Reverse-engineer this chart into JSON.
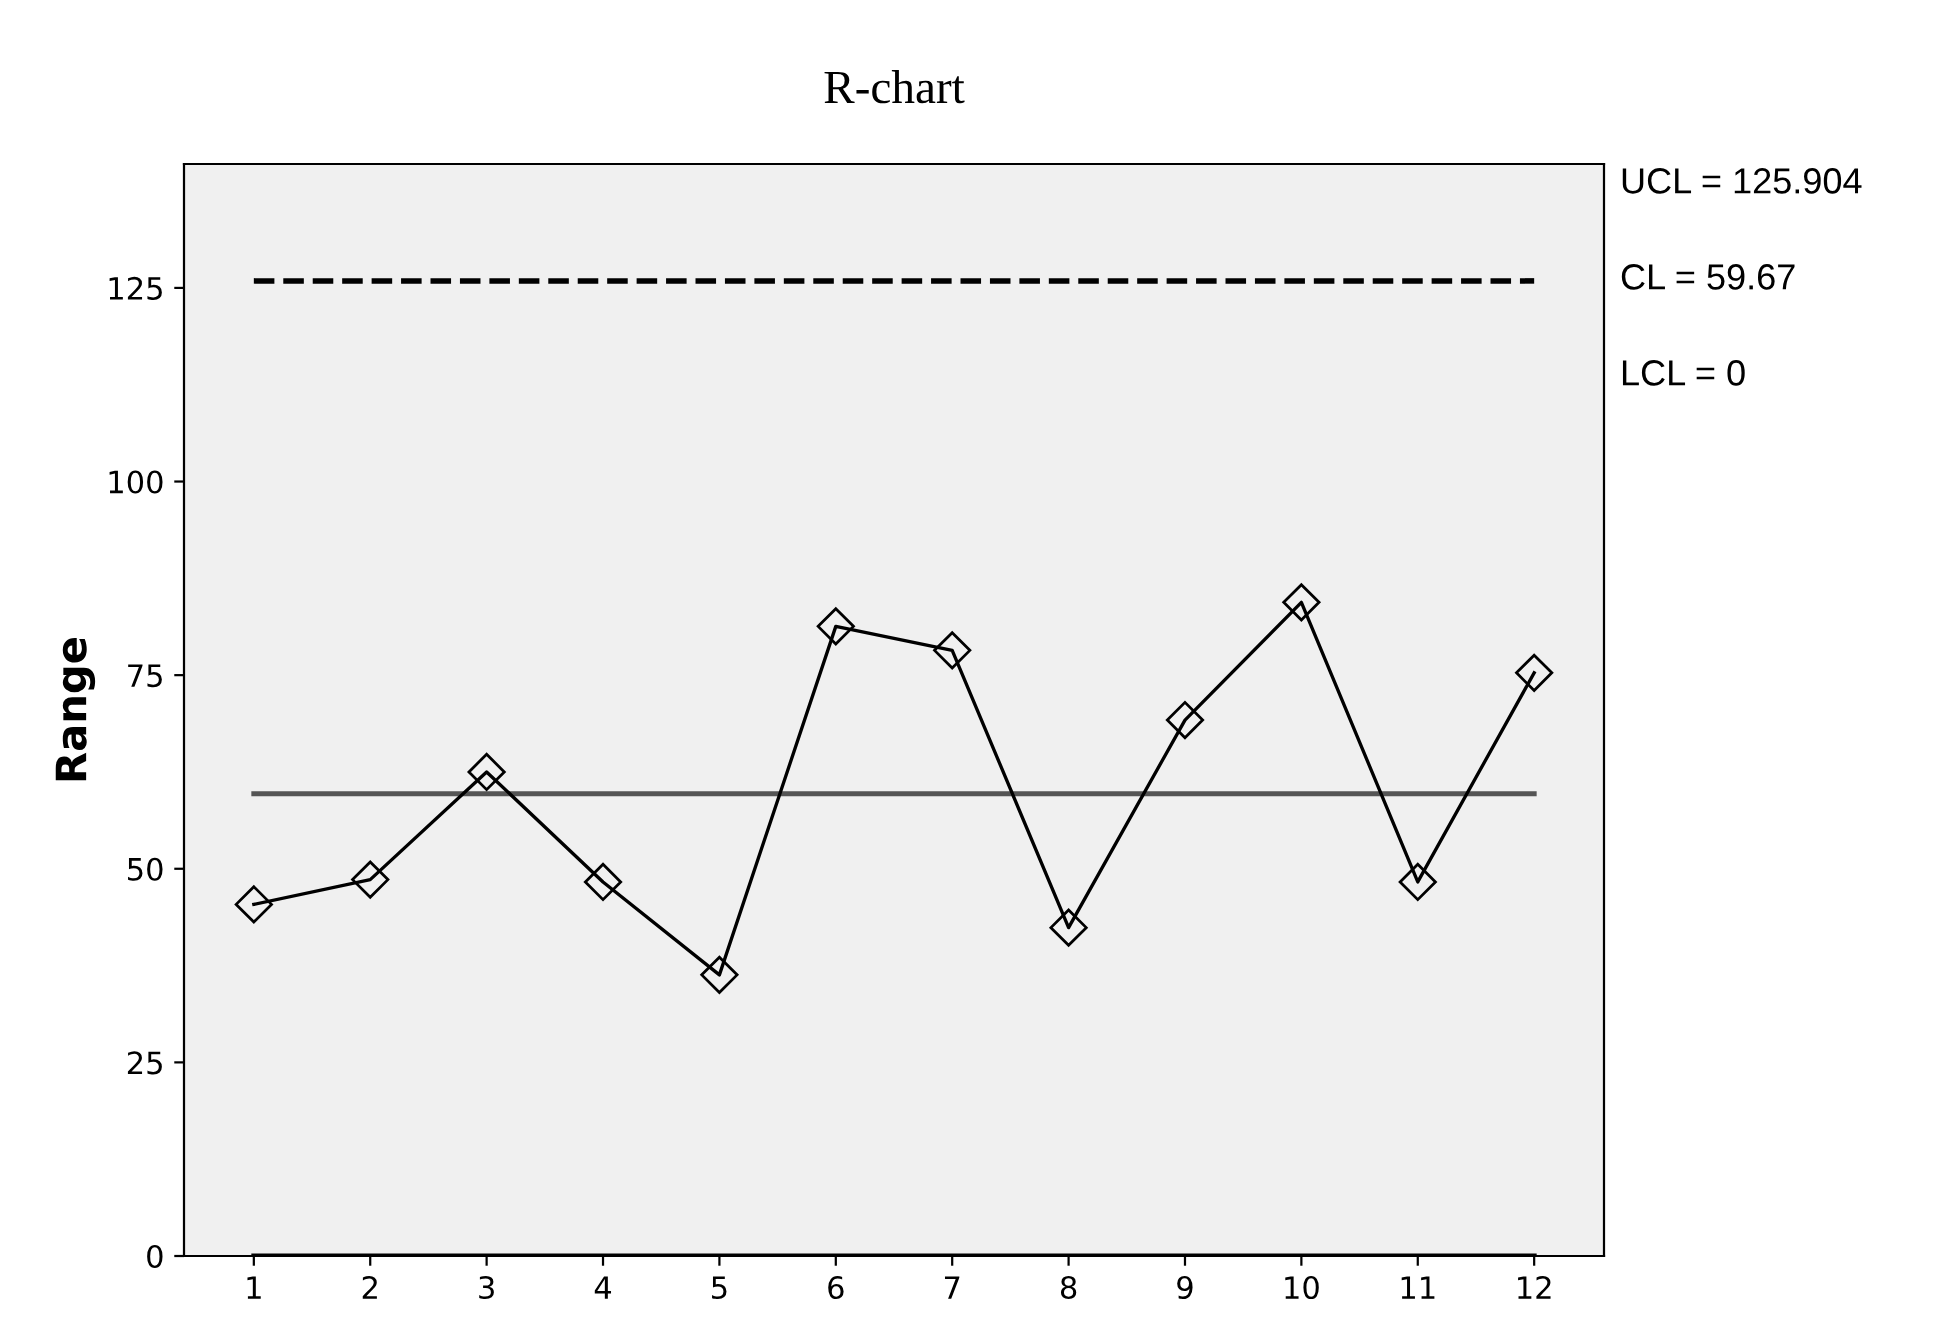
{
  "chart_data": {
    "type": "line",
    "title": "R-chart",
    "ylabel": "Range",
    "categories": [
      "1",
      "2",
      "3",
      "4",
      "5",
      "6",
      "7",
      "8",
      "9",
      "10",
      "11",
      "12"
    ],
    "series": [
      {
        "color": "#000000",
        "values": [
          45.4,
          48.6,
          62.5,
          48.3,
          36.3,
          81.3,
          78.2,
          42.4,
          69.2,
          84.4,
          48.3,
          75.3
        ]
      }
    ],
    "marker": "diamond",
    "line_style": "solid",
    "ylim": [
      0,
      141
    ],
    "yticks": [
      0,
      25,
      50,
      75,
      100,
      125
    ],
    "ref_lines": [
      {
        "axis": "y",
        "value": 125.904,
        "color": "#000000",
        "line_style": "dashed"
      },
      {
        "axis": "y",
        "value": 59.67,
        "color": "#555555",
        "line_style": "solid"
      },
      {
        "axis": "y",
        "value": 0,
        "color": "#000000",
        "line_style": "solid"
      }
    ],
    "annotations": [
      "UCL = 125.904",
      "CL = 59.67",
      "LCL = 0"
    ],
    "grid": false,
    "legend": false
  }
}
